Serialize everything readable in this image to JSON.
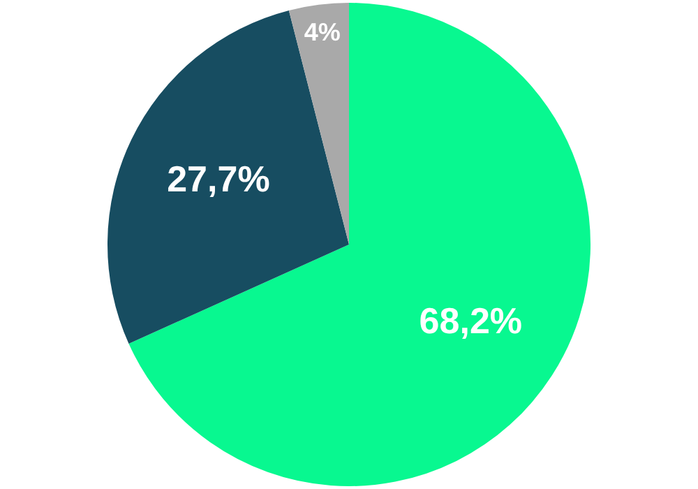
{
  "chart_data": {
    "type": "pie",
    "categories": [
      null,
      null,
      null
    ],
    "values": [
      68.2,
      27.7,
      4
    ],
    "colors": [
      "#08f890",
      "#174d61",
      "#a9a9a9"
    ],
    "value_labels": [
      "68,2%",
      "27,7%",
      "4%"
    ],
    "legend": false
  }
}
